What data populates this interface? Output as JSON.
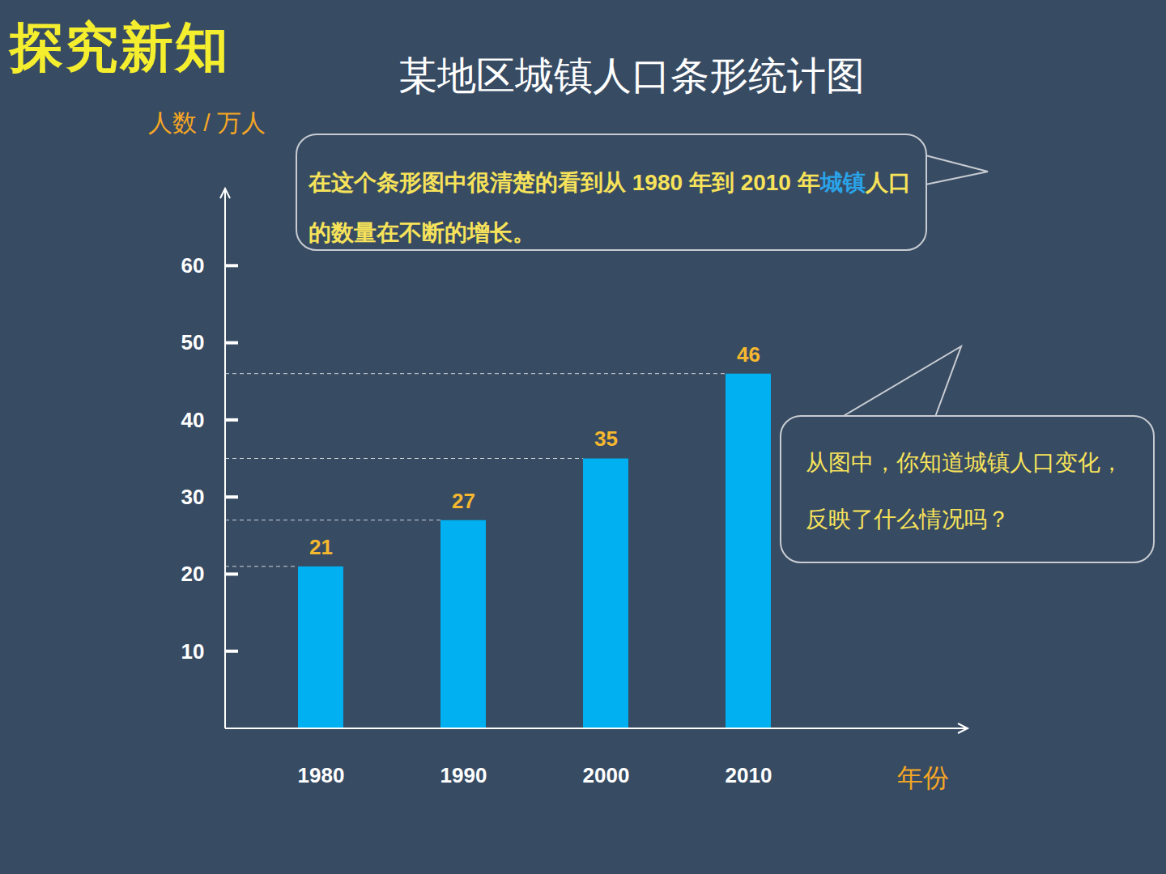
{
  "header": "探究新知",
  "chart_data": {
    "type": "bar",
    "title": "某地区城镇人口条形统计图",
    "y_label": "人数 / 万人",
    "x_label": "年份",
    "categories": [
      "1980",
      "1990",
      "2000",
      "2010"
    ],
    "values": [
      21,
      27,
      35,
      46
    ],
    "color": "#00b0f0",
    "ylim": [
      0,
      70
    ],
    "yticks": [
      10,
      20,
      30,
      40,
      50,
      60
    ],
    "data_labels": true,
    "annotations": [
      {
        "segments": [
          {
            "text": "在这个条形图中很清楚的看到从 1980 年到 2010 年"
          },
          {
            "text": "城镇",
            "color": "#2aa3e8"
          },
          {
            "text": "人口的数量在不断的增长。"
          }
        ]
      },
      {
        "segments": [
          {
            "text": "从图中，你知道城镇人口变化，反映了什么情况吗？"
          }
        ]
      }
    ]
  }
}
